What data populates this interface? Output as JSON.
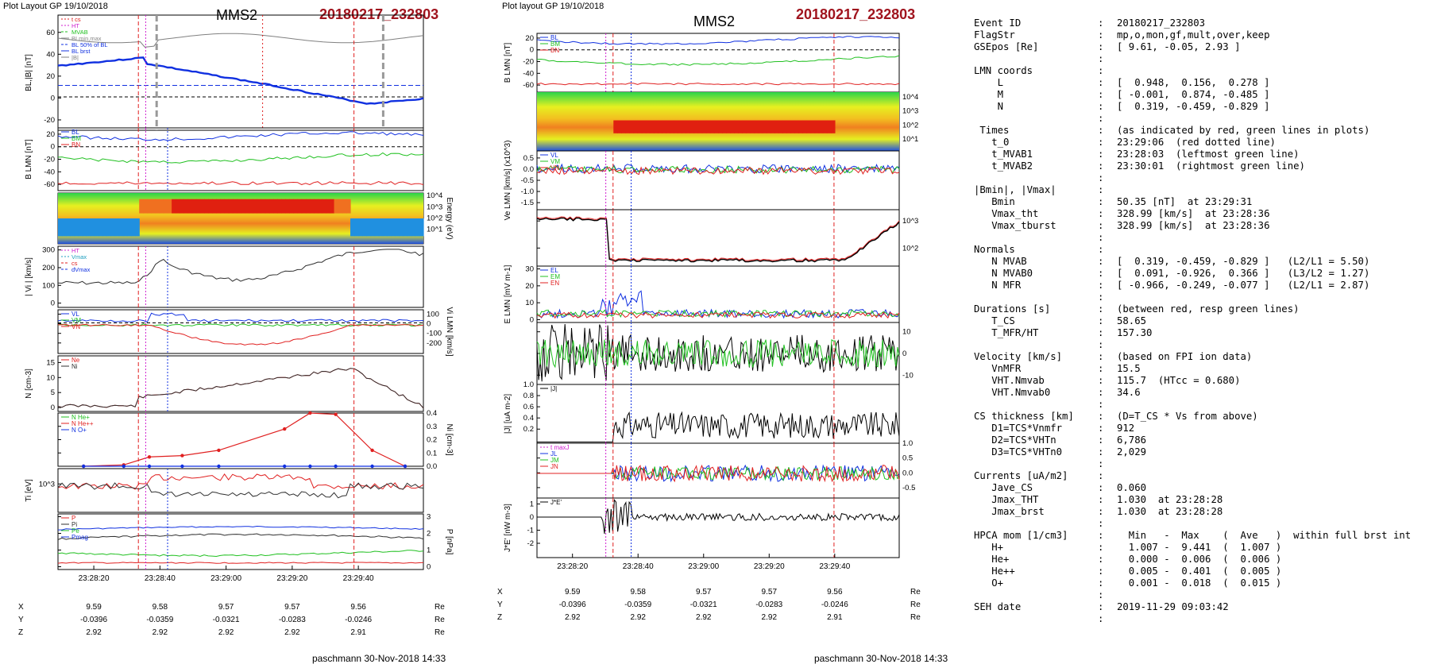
{
  "header": {
    "layout_label_1": "Plot Layout GP 19/10/2018",
    "layout_label_2": "Plot layout GP 19/10/2018",
    "spacecraft": "MMS2",
    "event": "20180217_232803"
  },
  "footer": {
    "credit": "paschmann 30-Nov-2018 14:33"
  },
  "colors": {
    "event_red": "#a0141e",
    "blue": "#1030e0",
    "green": "#20c020",
    "red": "#e02020",
    "magenta": "#d020d0",
    "gray": "#808080"
  },
  "chart_data": [
    {
      "type": "line",
      "id": "left-panel-stack",
      "title": "MMS2",
      "x_tick_labels": [
        "23:28:20",
        "23:28:40",
        "23:29:00",
        "23:29:20",
        "23:29:40"
      ],
      "orbit_rows": [
        {
          "label": "X",
          "values": [
            "9.59",
            "9.58",
            "9.57",
            "9.57",
            "9.56"
          ],
          "unit": "Re"
        },
        {
          "label": "Y",
          "values": [
            "-0.0396",
            "-0.0359",
            "-0.0321",
            "-0.0283",
            "-0.0246"
          ],
          "unit": "Re"
        },
        {
          "label": "Z",
          "values": [
            "2.92",
            "2.92",
            "2.92",
            "2.92",
            "2.91"
          ],
          "unit": "Re"
        }
      ],
      "panels": [
        {
          "ylabel": "BL,|B| [nT]",
          "yticks": [
            "60",
            "40",
            "20",
            "0",
            "-20"
          ],
          "legend": [
            "t_cs",
            "HT",
            "MVAB",
            "BLmin,max",
            "BL 50% of BL",
            "BL brst",
            "|B|"
          ]
        },
        {
          "ylabel": "B LMN [nT]",
          "yticks": [
            "20",
            "0",
            "-20",
            "-40",
            "-60"
          ],
          "legend": [
            "BL",
            "BM",
            "BN"
          ]
        },
        {
          "ylabel": "Energy (eV)",
          "yticks": [
            "10^4",
            "10^3",
            "10^2",
            "10^1"
          ],
          "kind": "spectrogram"
        },
        {
          "ylabel": "| Vi | [km/s]",
          "yticks": [
            "300",
            "200",
            "100",
            "0"
          ],
          "legend": [
            "HT",
            "Vmax",
            "cs",
            "dVmax"
          ]
        },
        {
          "ylabel": "Vi LMN [km/s]",
          "yticks": [
            "100",
            "0",
            "-100",
            "-200"
          ],
          "legend": [
            "VL",
            "VM",
            "VN"
          ]
        },
        {
          "ylabel": "N [cm-3]",
          "yticks": [
            "15",
            "10",
            "5",
            "0"
          ],
          "legend": [
            "Ne",
            "Ni"
          ]
        },
        {
          "ylabel": "Ni [cm-3]",
          "yticks": [
            "0.4",
            "0.3",
            "0.2",
            "0.1",
            "0.0"
          ],
          "legend": [
            "N He+",
            "N He++",
            "N O+"
          ],
          "series": [
            {
              "name": "N He++",
              "values": [
                0.0,
                0.01,
                0.07,
                0.08,
                0.12,
                0.28,
                0.4,
                0.39,
                0.12,
                0.0
              ]
            },
            {
              "name": "N O+",
              "values": [
                0.0,
                0.0,
                0.0,
                0.0,
                0.0,
                0.0,
                0.0,
                0.0,
                0.0,
                0.0
              ]
            }
          ]
        },
        {
          "ylabel": "Ti [eV]",
          "yticks": [
            "10^3"
          ],
          "legend": [
            "T",
            "Tpar",
            "Tperp"
          ]
        },
        {
          "ylabel": "P [nPa]",
          "yticks": [
            "3",
            "2",
            "1",
            "0"
          ],
          "legend": [
            "P",
            "Pi",
            "Pe",
            "Pmag"
          ]
        }
      ]
    },
    {
      "type": "line",
      "id": "middle-panel-stack",
      "title": "MMS2",
      "x_tick_labels": [
        "23:28:20",
        "23:28:40",
        "23:29:00",
        "23:29:20",
        "23:29:40"
      ],
      "orbit_rows": [
        {
          "label": "X",
          "values": [
            "9.59",
            "9.58",
            "9.57",
            "9.57",
            "9.56"
          ],
          "unit": "Re"
        },
        {
          "label": "Y",
          "values": [
            "-0.0396",
            "-0.0359",
            "-0.0321",
            "-0.0283",
            "-0.0246"
          ],
          "unit": "Re"
        },
        {
          "label": "Z",
          "values": [
            "2.92",
            "2.92",
            "2.92",
            "2.92",
            "2.91"
          ],
          "unit": "Re"
        }
      ],
      "panels": [
        {
          "ylabel": "B LMN [nT]",
          "yticks": [
            "20",
            "0",
            "-20",
            "-40",
            "-60"
          ],
          "legend": [
            "BL",
            "BM",
            "BN"
          ]
        },
        {
          "ylabel": "Energy (eV)",
          "yticks": [
            "10^4",
            "10^3",
            "10^2",
            "10^1"
          ],
          "kind": "spectrogram"
        },
        {
          "ylabel": "Ve LMN [km/s] (x10^3)",
          "yticks": [
            "0.5",
            "0.0",
            "-0.5",
            "-1.0",
            "-1.5"
          ],
          "legend": [
            "VL",
            "VM",
            "VN"
          ]
        },
        {
          "ylabel": "Te [eV]",
          "yticks": [
            "10^3",
            "10^2"
          ],
          "legend": [
            "T",
            "Tpar",
            "Tperp"
          ]
        },
        {
          "ylabel": "E LMN [mV m-1]",
          "yticks": [
            "30",
            "20",
            "10",
            "0"
          ],
          "legend": [
            "EL",
            "EM",
            "EN"
          ]
        },
        {
          "ylabel": "EM [mV m-2]",
          "yticks": [
            "10",
            "0",
            "-10"
          ],
          "legend": [
            "EM"
          ]
        },
        {
          "ylabel": "|J| [uA m-2]",
          "yticks": [
            "1.0",
            "0.8",
            "0.6",
            "0.4",
            "0.2"
          ],
          "legend": [
            "|J|"
          ]
        },
        {
          "ylabel": "J [uA m-2]",
          "yticks": [
            "1.0",
            "0.5",
            "0.0",
            "-0.5"
          ],
          "legend": [
            "t maxJ",
            "JL",
            "JM",
            "JN"
          ]
        },
        {
          "ylabel": "J*E' [nW m-3]",
          "yticks": [
            "1",
            "0",
            "-1",
            "-2"
          ],
          "legend": [
            "J*E'"
          ]
        }
      ]
    }
  ],
  "info": [
    {
      "k": "Event ID",
      "v": "20180217_232803"
    },
    {
      "k": "FlagStr",
      "v": "mp,o,mon,gf,mult,over,keep"
    },
    {
      "k": "GSEpos [Re]",
      "v": "[ 9.61, -0.05, 2.93 ]"
    },
    {
      "k": "",
      "v": ""
    },
    {
      "k": "LMN coords",
      "v": ""
    },
    {
      "k": "    L",
      "v": "[  0.948,  0.156,  0.278 ]"
    },
    {
      "k": "    M",
      "v": "[ -0.001,  0.874, -0.485 ]"
    },
    {
      "k": "    N",
      "v": "[  0.319, -0.459, -0.829 ]"
    },
    {
      "k": "",
      "v": ""
    },
    {
      "k": " Times",
      "v": "(as indicated by red, green lines in plots)"
    },
    {
      "k": "   t_0",
      "v": "23:29:06  (red dotted line)"
    },
    {
      "k": "   t_MVAB1",
      "v": "23:28:03  (leftmost green line)"
    },
    {
      "k": "   t_MVAB2",
      "v": "23:30:01  (rightmost green line)"
    },
    {
      "k": "",
      "v": ""
    },
    {
      "k": "|Bmin|, |Vmax|",
      "v": ""
    },
    {
      "k": "   Bmin",
      "v": "50.35 [nT]  at 23:29:31"
    },
    {
      "k": "   Vmax_tht",
      "v": "328.99 [km/s]  at 23:28:36"
    },
    {
      "k": "   Vmax_tburst",
      "v": "328.99 [km/s]  at 23:28:36"
    },
    {
      "k": "",
      "v": ""
    },
    {
      "k": "Normals",
      "v": ""
    },
    {
      "k": "   N MVAB",
      "v": "[  0.319, -0.459, -0.829 ]   (L2/L1 = 5.50)"
    },
    {
      "k": "   N MVAB0",
      "v": "[  0.091, -0.926,  0.366 ]   (L3/L2 = 1.27)"
    },
    {
      "k": "   N MFR",
      "v": "[ -0.966, -0.249, -0.077 ]   (L2/L1 = 2.87)"
    },
    {
      "k": "",
      "v": ""
    },
    {
      "k": "Durations [s]",
      "v": "(between red, resp green lines)"
    },
    {
      "k": "   T_CS",
      "v": "58.65"
    },
    {
      "k": "   T_MFR/HT",
      "v": "157.30"
    },
    {
      "k": "",
      "v": ""
    },
    {
      "k": "Velocity [km/s]",
      "v": "(based on FPI ion data)"
    },
    {
      "k": "   VnMFR",
      "v": "15.5"
    },
    {
      "k": "   VHT.Nmvab",
      "v": "115.7  (HTcc = 0.680)"
    },
    {
      "k": "   VHT.Nmvab0",
      "v": "34.6"
    },
    {
      "k": "",
      "v": ""
    },
    {
      "k": "CS thickness [km]",
      "v": "(D=T_CS * Vs from above)"
    },
    {
      "k": "   D1=TCS*Vnmfr",
      "v": "912"
    },
    {
      "k": "   D2=TCS*VHTn",
      "v": "6,786"
    },
    {
      "k": "   D3=TCS*VHTn0",
      "v": "2,029"
    },
    {
      "k": "",
      "v": ""
    },
    {
      "k": "Currents [uA/m2]",
      "v": ""
    },
    {
      "k": "   Jave_CS",
      "v": "0.060"
    },
    {
      "k": "   Jmax_THT",
      "v": "1.030  at 23:28:28"
    },
    {
      "k": "   Jmax_brst",
      "v": "1.030  at 23:28:28"
    },
    {
      "k": "",
      "v": ""
    },
    {
      "k": "HPCA mom [1/cm3]",
      "v": "  Min   -  Max    (  Ave   )  within full brst int"
    },
    {
      "k": "   H+",
      "v": "  1.007 -  9.441  (  1.007 )"
    },
    {
      "k": "   He+",
      "v": "  0.000 -  0.006  (  0.006 )"
    },
    {
      "k": "   He++",
      "v": "  0.005 -  0.401  (  0.005 )"
    },
    {
      "k": "   O+",
      "v": "  0.001 -  0.018  (  0.015 )"
    },
    {
      "k": "",
      "v": ""
    },
    {
      "k": "SEH date",
      "v": "2019-11-29 09:03:42"
    },
    {
      "k": "",
      "v": ""
    }
  ]
}
